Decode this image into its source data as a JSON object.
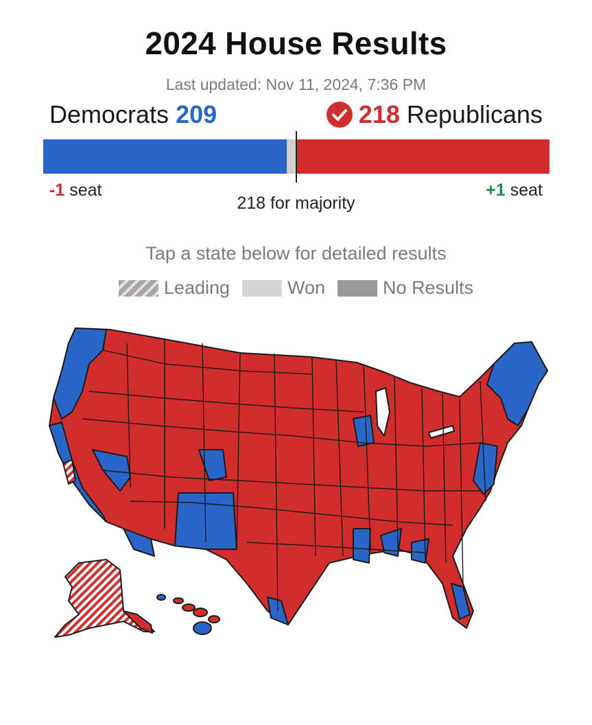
{
  "header": {
    "title": "2024 House Results",
    "last_updated": "Last updated: Nov 11, 2024, 7:36 PM"
  },
  "democrats": {
    "label": "Democrats",
    "seats": "209",
    "change_value": "-1",
    "change_unit": "seat",
    "color": "#2a65c8"
  },
  "republicans": {
    "label": "Republicans",
    "seats": "218",
    "change_value": "+1",
    "change_unit": "seat",
    "color": "#d22d2d",
    "winner_icon": "check-circle-icon"
  },
  "majority_text": "218 for majority",
  "instruction": "Tap a state below for detailed results",
  "legend": {
    "items": [
      {
        "label": "Leading",
        "pattern": "striped",
        "icon": "leading-swatch"
      },
      {
        "label": "Won",
        "color": "#d7d5d2",
        "icon": "won-swatch"
      },
      {
        "label": "No Results",
        "color": "#9c9a97",
        "icon": "no-results-swatch"
      }
    ]
  },
  "chart_data": {
    "type": "bar",
    "orientation": "horizontal-stacked",
    "total": 435,
    "majority": 218,
    "series": [
      {
        "name": "Democrats",
        "value": 209,
        "color": "#2a65c8"
      },
      {
        "name": "No Results",
        "value": 8,
        "color": "#d0cfcc"
      },
      {
        "name": "Republicans",
        "value": 218,
        "color": "#d22d2d"
      }
    ]
  },
  "map": {
    "type": "us-house-districts",
    "colors": {
      "democrat": "#2a65c8",
      "republican": "#d22d2d",
      "leading_republican": "striped"
    }
  }
}
